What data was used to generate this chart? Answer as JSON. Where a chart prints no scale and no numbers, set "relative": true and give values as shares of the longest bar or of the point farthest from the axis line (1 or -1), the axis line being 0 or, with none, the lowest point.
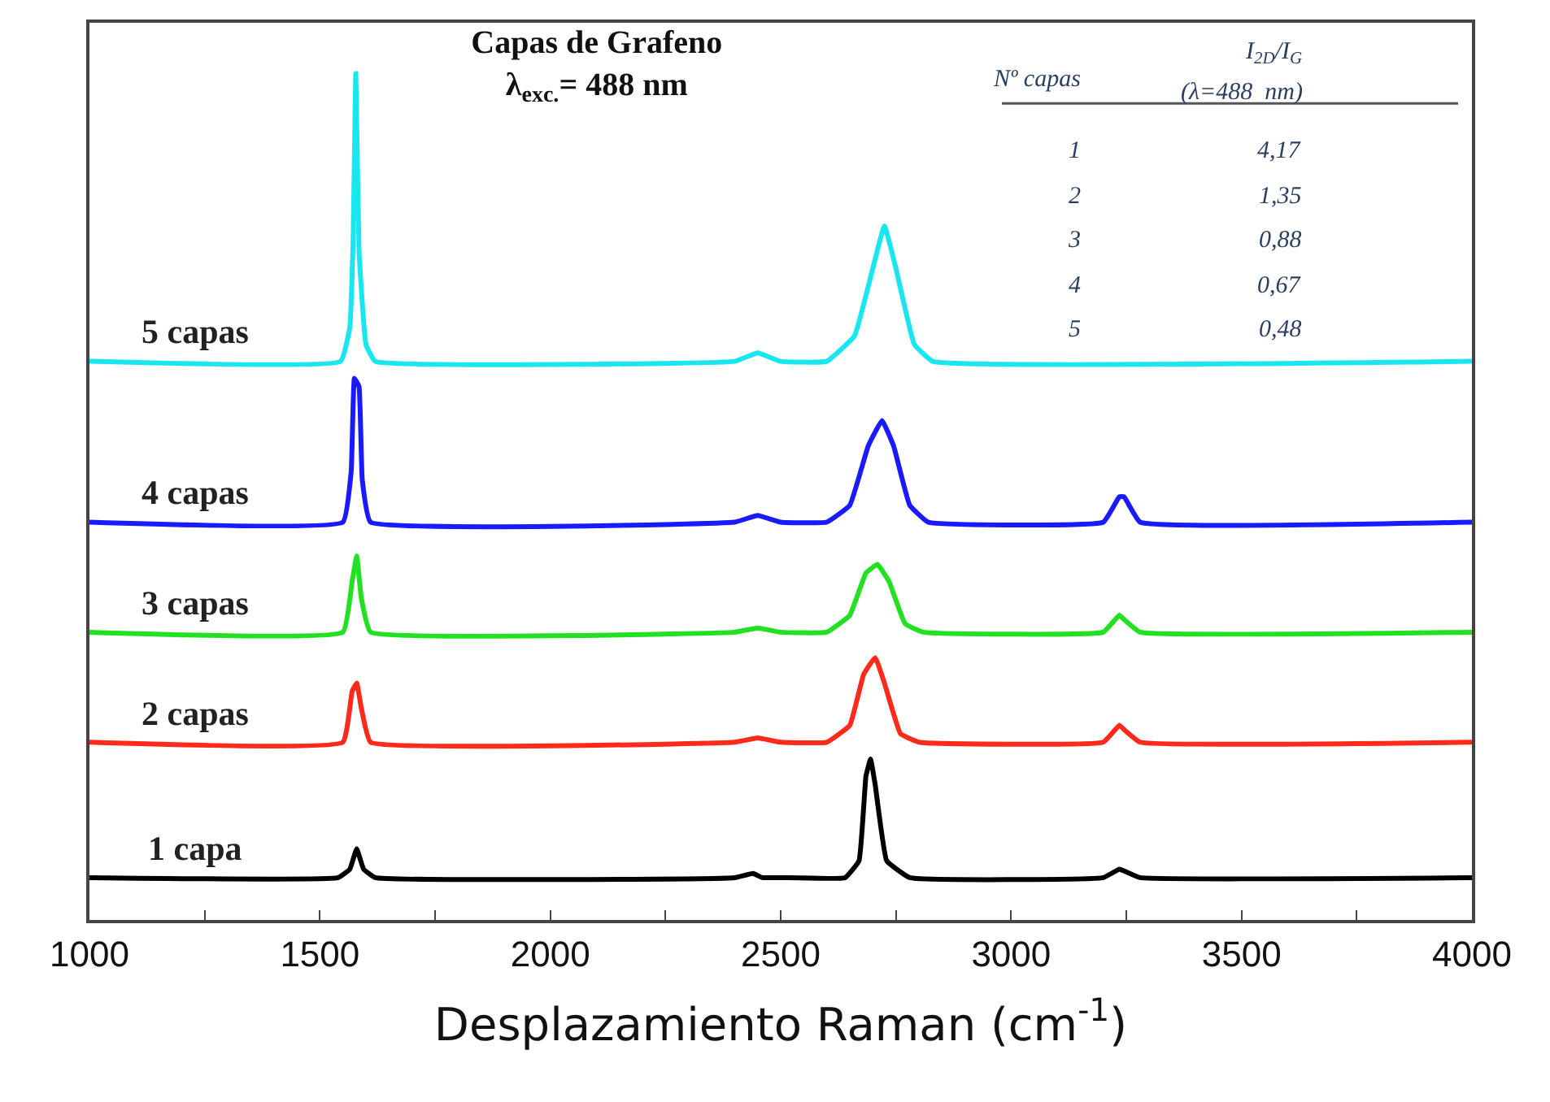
{
  "chart_data": {
    "type": "line",
    "relative": true,
    "title": "Capas de Grafeno",
    "subtitle": "λ$_{exc.}$= 488 nm",
    "xlabel": "Desplazamiento Raman (cm$^{-1}$)",
    "xlim": [
      1000,
      4000
    ],
    "xticks": [
      1000,
      {
        "value": 1250,
        "label": null
      },
      1500,
      {
        "value": 1750,
        "label": null
      },
      2000,
      {
        "value": 2250,
        "label": null
      },
      2500,
      {
        "value": 2750,
        "label": null
      },
      3000,
      {
        "value": 3250,
        "label": null
      },
      3500,
      {
        "value": 3750,
        "label": null
      },
      4000
    ],
    "legend": false,
    "marker": "none",
    "line_style": "solid",
    "series": [
      {
        "name": "1 capa",
        "color": "#000000",
        "x": [
          1000,
          1540,
          1565,
          1580,
          1595,
          1620,
          2400,
          2440,
          2460,
          2500,
          2640,
          2670,
          2685,
          2695,
          2705,
          2730,
          2780,
          3200,
          3235,
          3245,
          3280,
          4000
        ],
        "values": [
          0.05,
          0.05,
          0.06,
          0.084,
          0.06,
          0.05,
          0.05,
          0.055,
          0.05,
          0.05,
          0.05,
          0.07,
          0.17,
          0.19,
          0.16,
          0.07,
          0.05,
          0.05,
          0.06,
          0.058,
          0.05,
          0.05
        ]
      },
      {
        "name": "2 capas",
        "color": "#ff2a1a",
        "x": [
          1000,
          1550,
          1570,
          1580,
          1590,
          1610,
          2400,
          2450,
          2500,
          2600,
          2650,
          2680,
          2705,
          2725,
          2760,
          2800,
          3200,
          3235,
          3245,
          3280,
          4000
        ],
        "values": [
          0.21,
          0.21,
          0.27,
          0.28,
          0.25,
          0.21,
          0.21,
          0.215,
          0.21,
          0.21,
          0.23,
          0.29,
          0.31,
          0.28,
          0.22,
          0.21,
          0.21,
          0.23,
          0.225,
          0.21,
          0.21
        ]
      },
      {
        "name": "3 capas",
        "color": "#22e022",
        "x": [
          1000,
          1550,
          1570,
          1580,
          1590,
          1610,
          2400,
          2450,
          2500,
          2600,
          2650,
          2685,
          2710,
          2735,
          2770,
          2810,
          3200,
          3235,
          3245,
          3280,
          4000
        ],
        "values": [
          0.34,
          0.34,
          0.4,
          0.43,
          0.38,
          0.34,
          0.34,
          0.345,
          0.34,
          0.34,
          0.36,
          0.41,
          0.42,
          0.4,
          0.35,
          0.34,
          0.34,
          0.36,
          0.355,
          0.34,
          0.34
        ]
      },
      {
        "name": "4 capas",
        "color": "#1a1aff",
        "x": [
          1000,
          1550,
          1568,
          1575,
          1585,
          1592,
          1610,
          2400,
          2450,
          2500,
          2600,
          2650,
          2690,
          2720,
          2745,
          2780,
          2820,
          3200,
          3235,
          3245,
          3280,
          4000
        ],
        "values": [
          0.47,
          0.47,
          0.53,
          0.64,
          0.63,
          0.52,
          0.47,
          0.47,
          0.478,
          0.47,
          0.47,
          0.49,
          0.56,
          0.59,
          0.56,
          0.49,
          0.47,
          0.47,
          0.5,
          0.5,
          0.47,
          0.47
        ]
      },
      {
        "name": "5 capas",
        "color": "#1ae6f0",
        "x": [
          1000,
          1545,
          1565,
          1572,
          1578,
          1585,
          1600,
          1620,
          2400,
          2450,
          2500,
          2600,
          2660,
          2700,
          2725,
          2750,
          2790,
          2830,
          4000
        ],
        "values": [
          0.66,
          0.66,
          0.7,
          0.8,
          1.0,
          0.79,
          0.68,
          0.66,
          0.66,
          0.67,
          0.66,
          0.66,
          0.69,
          0.77,
          0.82,
          0.77,
          0.68,
          0.66,
          0.66
        ]
      }
    ],
    "annotations": [
      "Nº capas",
      "I$_{2D}$/I$_{G}$",
      "(λ=488  nm)",
      "1",
      "4,17",
      "2",
      "1,35",
      "3",
      "0,88",
      "4",
      "0,67",
      "5",
      "0,48"
    ]
  }
}
